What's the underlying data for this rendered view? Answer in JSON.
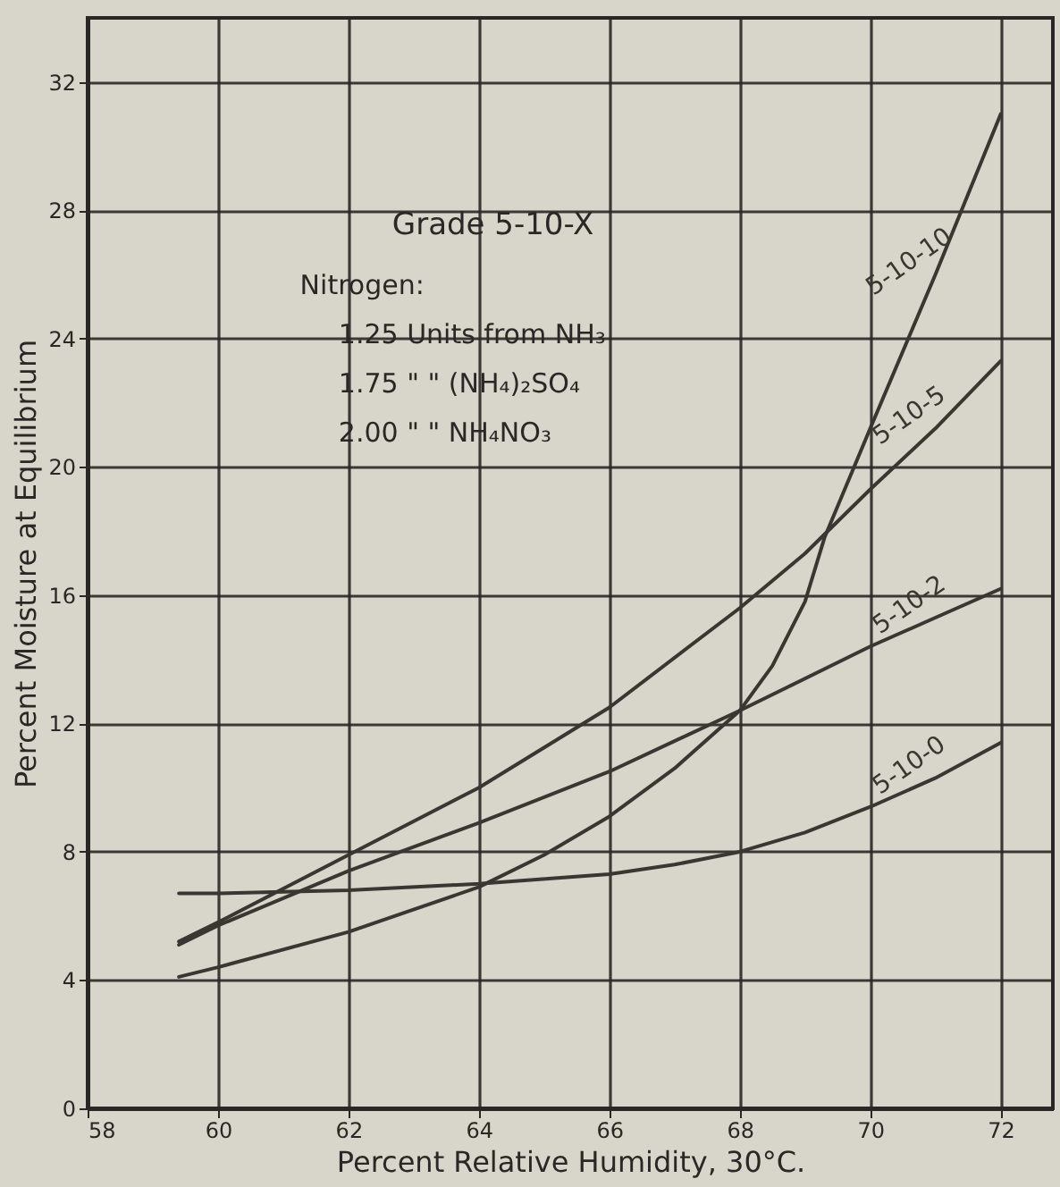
{
  "chart_data": {
    "type": "line",
    "title": "Grade 5-10-X",
    "xlabel": "Percent Relative Humidity,  30°C.",
    "ylabel": "Percent Moisture at Equilibrium",
    "annotations": [
      "Nitrogen:",
      "1.25 Units from NH₃",
      "1.75    \"      \"    (NH₄)₂SO₄",
      "2.00    \"      \"    NH₄NO₃"
    ],
    "series": [
      {
        "name": "5-10-10",
        "color": "#3a3733",
        "x": [
          59.4,
          60,
          62,
          64,
          65,
          66,
          67,
          68,
          68.5,
          69,
          69.3,
          70,
          71,
          72
        ],
        "values": [
          4.1,
          4.4,
          5.5,
          6.9,
          7.9,
          9.1,
          10.6,
          12.4,
          13.8,
          15.8,
          17.8,
          21.2,
          26,
          31
        ]
      },
      {
        "name": "5-10-5",
        "color": "#3a3733",
        "x": [
          59.4,
          60,
          62,
          64,
          66,
          68,
          69,
          70,
          71,
          72
        ],
        "values": [
          5.2,
          5.8,
          7.9,
          10,
          12.5,
          15.6,
          17.3,
          19.3,
          21.2,
          23.3
        ]
      },
      {
        "name": "5-10-2",
        "color": "#3a3733",
        "x": [
          59.4,
          60,
          62,
          64,
          66,
          68,
          70,
          71,
          72
        ],
        "values": [
          5.1,
          5.7,
          7.4,
          8.9,
          10.5,
          12.4,
          14.4,
          15.3,
          16.2
        ]
      },
      {
        "name": "5-10-0",
        "color": "#3a3733",
        "x": [
          59.4,
          60,
          62,
          64,
          66,
          67,
          68,
          69,
          70,
          71,
          72
        ],
        "values": [
          6.7,
          6.7,
          6.8,
          7,
          7.3,
          7.6,
          8,
          8.6,
          9.4,
          10.3,
          11.4
        ]
      }
    ],
    "xlim": [
      58,
      72.8
    ],
    "ylim": [
      0,
      34
    ],
    "xticks": [
      58,
      60,
      62,
      64,
      66,
      68,
      70,
      72
    ],
    "yticks": [
      0,
      4,
      8,
      12,
      16,
      20,
      24,
      28,
      32
    ],
    "grid": true,
    "line_style": "solid",
    "marker": "none"
  }
}
